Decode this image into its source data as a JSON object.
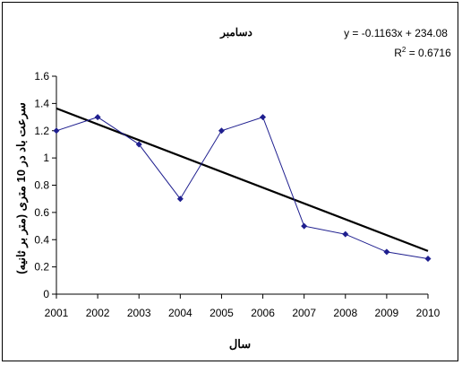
{
  "chart_data": {
    "type": "line",
    "title": "دسامبر",
    "xlabel": "سال",
    "ylabel": "سرعت باد در 10 متری (متر بر ثانیه)",
    "x": [
      2001,
      2002,
      2003,
      2004,
      2005,
      2006,
      2007,
      2008,
      2009,
      2010
    ],
    "x_tick_labels": [
      "2001",
      "2002",
      "2003",
      "2004",
      "2005",
      "2006",
      "2007",
      "2008",
      "2009",
      "2010"
    ],
    "series": [
      {
        "values": [
          1.2,
          1.3,
          1.1,
          0.7,
          1.2,
          1.3,
          0.5,
          0.44,
          0.31,
          0.26
        ],
        "color": "#1f1f8f",
        "marker": "diamond"
      }
    ],
    "trendline": {
      "slope": -0.1163,
      "intercept": 234.08,
      "equation": "y = -0.1163x + 234.08",
      "r2_prefix": "R",
      "r2_sup": "2",
      "r2_suffix": " = 0.6716",
      "color": "#000000"
    },
    "ylim": [
      0,
      1.6
    ],
    "y_ticks": [
      0,
      0.2,
      0.4,
      0.6,
      0.8,
      1,
      1.2,
      1.4,
      1.6
    ],
    "y_tick_labels": [
      "0",
      "0.2",
      "0.4",
      "0.6",
      "0.8",
      "1",
      "1.2",
      "1.4",
      "1.6"
    ],
    "grid": false,
    "legend": "none"
  }
}
